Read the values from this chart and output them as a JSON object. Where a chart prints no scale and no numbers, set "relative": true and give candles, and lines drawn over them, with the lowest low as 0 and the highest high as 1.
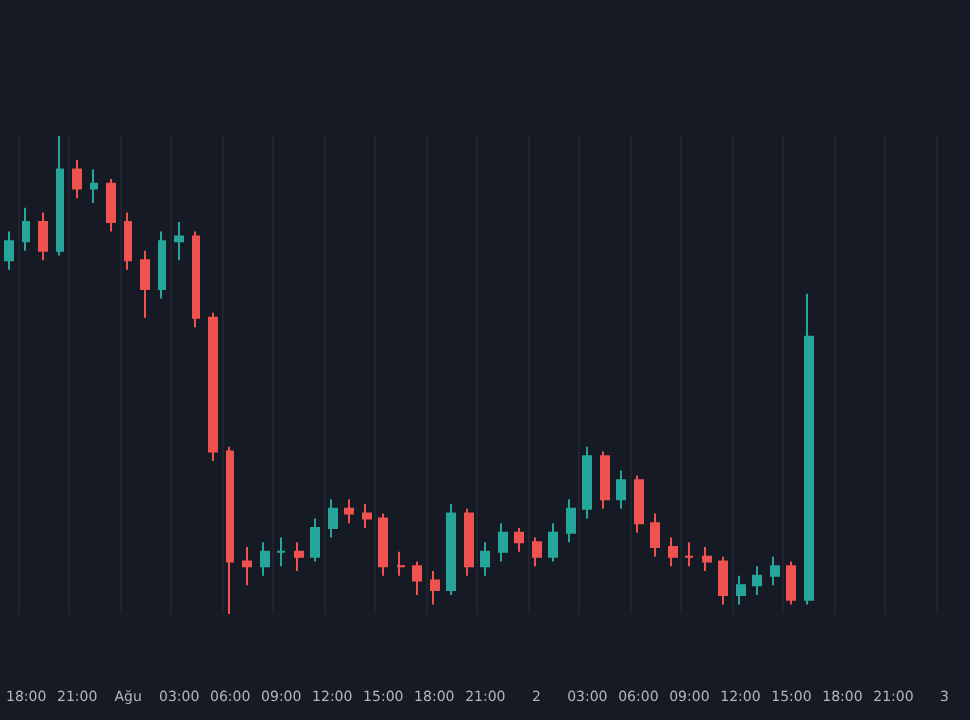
{
  "chart_data": {
    "type": "candlestick",
    "relative": true,
    "grid": "x",
    "categories": [
      null,
      "18:00",
      null,
      null,
      "21:00",
      null,
      null,
      "Ağu",
      null,
      null,
      "03:00",
      null,
      null,
      "06:00",
      null,
      null,
      "09:00",
      null,
      null,
      "12:00",
      null,
      null,
      "15:00",
      null,
      null,
      "18:00",
      null,
      null,
      "21:00",
      null,
      null,
      "2",
      null,
      null,
      "03:00",
      null,
      null,
      "06:00",
      null,
      null,
      "09:00",
      null,
      null,
      "12:00",
      null,
      null,
      "15:00",
      null,
      null,
      "18:00",
      null,
      null,
      "21:00",
      null,
      null,
      "3",
      null
    ],
    "ohlc": [
      [
        0.74,
        0.8,
        0.72,
        0.78
      ],
      [
        0.78,
        0.85,
        0.76,
        0.82
      ],
      [
        0.82,
        0.84,
        0.74,
        0.76
      ],
      [
        0.76,
        1,
        0.75,
        0.93
      ],
      [
        0.93,
        0.95,
        0.87,
        0.89
      ],
      [
        0.89,
        0.93,
        0.86,
        0.9
      ],
      [
        0.9,
        0.91,
        0.8,
        0.82
      ],
      [
        0.82,
        0.84,
        0.72,
        0.74
      ],
      [
        0.74,
        0.76,
        0.62,
        0.68
      ],
      [
        0.68,
        0.8,
        0.66,
        0.78
      ],
      [
        0.78,
        0.82,
        0.74,
        0.79
      ],
      [
        0.79,
        0.8,
        0.6,
        0.62
      ],
      [
        0.62,
        0.63,
        0.32,
        0.34
      ],
      [
        0.34,
        0.35,
        0,
        0.11
      ],
      [
        0.11,
        0.14,
        0.06,
        0.1
      ],
      [
        0.1,
        0.15,
        0.08,
        0.13
      ],
      [
        0.13,
        0.16,
        0.1,
        0.13
      ],
      [
        0.13,
        0.15,
        0.09,
        0.12
      ],
      [
        0.12,
        0.2,
        0.11,
        0.18
      ],
      [
        0.18,
        0.24,
        0.16,
        0.22
      ],
      [
        0.22,
        0.24,
        0.19,
        0.21
      ],
      [
        0.21,
        0.23,
        0.18,
        0.2
      ],
      [
        0.2,
        0.21,
        0.08,
        0.1
      ],
      [
        0.1,
        0.13,
        0.08,
        0.1
      ],
      [
        0.1,
        0.11,
        0.04,
        0.07
      ],
      [
        0.07,
        0.09,
        0.02,
        0.05
      ],
      [
        0.05,
        0.23,
        0.04,
        0.21
      ],
      [
        0.21,
        0.22,
        0.08,
        0.1
      ],
      [
        0.1,
        0.15,
        0.08,
        0.13
      ],
      [
        0.13,
        0.19,
        0.11,
        0.17
      ],
      [
        0.17,
        0.18,
        0.13,
        0.15
      ],
      [
        0.15,
        0.16,
        0.1,
        0.12
      ],
      [
        0.12,
        0.19,
        0.11,
        0.17
      ],
      [
        0.17,
        0.24,
        0.15,
        0.22
      ],
      [
        0.22,
        0.35,
        0.2,
        0.33
      ],
      [
        0.33,
        0.34,
        0.22,
        0.24
      ],
      [
        0.24,
        0.3,
        0.22,
        0.28
      ],
      [
        0.28,
        0.29,
        0.17,
        0.19
      ],
      [
        0.19,
        0.21,
        0.12,
        0.14
      ],
      [
        0.14,
        0.16,
        0.1,
        0.12
      ],
      [
        0.12,
        0.15,
        0.1,
        0.12
      ],
      [
        0.12,
        0.14,
        0.09,
        0.11
      ],
      [
        0.11,
        0.12,
        0.02,
        0.04
      ],
      [
        0.04,
        0.08,
        0.02,
        0.06
      ],
      [
        0.06,
        0.1,
        0.04,
        0.08
      ],
      [
        0.08,
        0.12,
        0.06,
        0.1
      ],
      [
        0.1,
        0.11,
        0.02,
        0.03
      ],
      [
        0.03,
        0.67,
        0.02,
        0.58
      ],
      null,
      null,
      null,
      null,
      null,
      null,
      null,
      null,
      null
    ],
    "colors": [
      "#26a69a",
      "#26a69a",
      "#ef5350",
      "#26a69a",
      "#ef5350",
      "#26a69a",
      "#ef5350",
      "#ef5350",
      "#ef5350",
      "#26a69a",
      "#26a69a",
      "#ef5350",
      "#ef5350",
      "#ef5350",
      "#ef5350",
      "#26a69a",
      "#26a69a",
      "#ef5350",
      "#26a69a",
      "#26a69a",
      "#ef5350",
      "#ef5350",
      "#ef5350",
      "#ef5350",
      "#ef5350",
      "#ef5350",
      "#26a69a",
      "#ef5350",
      "#26a69a",
      "#26a69a",
      "#ef5350",
      "#ef5350",
      "#26a69a",
      "#26a69a",
      "#26a69a",
      "#ef5350",
      "#26a69a",
      "#ef5350",
      "#ef5350",
      "#ef5350",
      "#ef5350",
      "#ef5350",
      "#ef5350",
      "#26a69a",
      "#26a69a",
      "#26a69a",
      "#ef5350",
      "#26a69a",
      null,
      null,
      null,
      null,
      null,
      null,
      null,
      null,
      null
    ]
  }
}
